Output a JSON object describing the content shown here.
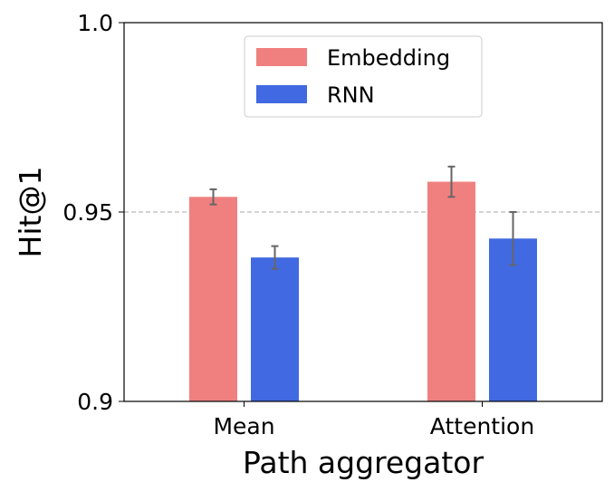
{
  "chart_data": {
    "type": "bar",
    "title": "",
    "xlabel": "Path aggregator",
    "ylabel": "Hit@1",
    "ylim": [
      0.9,
      1.0
    ],
    "yticks": [
      "0.9",
      "0.95",
      "1.0"
    ],
    "yticks_values": [
      0.9,
      0.95,
      1.0
    ],
    "reference_line": 0.95,
    "categories": [
      "Mean",
      "Attention"
    ],
    "series": [
      {
        "name": "Embedding",
        "color": "#f08080",
        "values": [
          0.954,
          0.958
        ],
        "errors": [
          0.002,
          0.004
        ]
      },
      {
        "name": "RNN",
        "color": "#4169e1",
        "values": [
          0.938,
          0.943
        ],
        "errors": [
          0.003,
          0.007
        ]
      }
    ],
    "legend": "top-center",
    "grid": false
  }
}
